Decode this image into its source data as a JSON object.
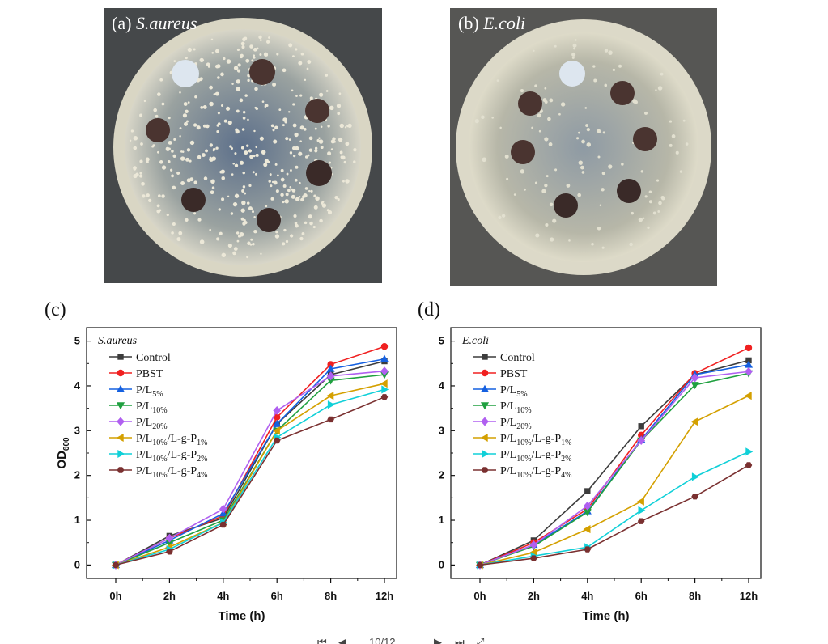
{
  "photos": [
    {
      "letter": "(a)",
      "organism": "S.aureus"
    },
    {
      "letter": "(b)",
      "organism": "E.coli"
    }
  ],
  "colors": {
    "Control": "#3c3c3c",
    "PBST": "#f02020",
    "P/L5%": "#1560e0",
    "P/L10%": "#20a040",
    "P/L20%": "#b060f0",
    "P/L10%/L-g-P1%": "#d4a000",
    "P/L10%/L-g-P2%": "#10d0d8",
    "P/L10%/L-g-P4%": "#7a3030"
  },
  "legend": [
    {
      "base": "Control",
      "sub": "",
      "mid": "",
      "sub2": "",
      "marker": "square"
    },
    {
      "base": "PBST",
      "sub": "",
      "mid": "",
      "sub2": "",
      "marker": "circle"
    },
    {
      "base": "P/L",
      "sub": "5%",
      "mid": "",
      "sub2": "",
      "marker": "triangle-up"
    },
    {
      "base": "P/L",
      "sub": "10%",
      "mid": "",
      "sub2": "",
      "marker": "triangle-down"
    },
    {
      "base": "P/L",
      "sub": "20%",
      "mid": "",
      "sub2": "",
      "marker": "diamond"
    },
    {
      "base": "P/L",
      "sub": "10%",
      "mid": "/L-g-P",
      "sub2": "1%",
      "marker": "triangle-left"
    },
    {
      "base": "P/L",
      "sub": "10%",
      "mid": "/L-g-P",
      "sub2": "2%",
      "marker": "triangle-right"
    },
    {
      "base": "P/L",
      "sub": "10%",
      "mid": "/L-g-P",
      "sub2": "4%",
      "marker": "hexagon"
    }
  ],
  "chart_data": [
    {
      "type": "line",
      "panel": "(c)",
      "annotation": "S.aureus",
      "xlabel": "Time (h)",
      "ylabel": "OD",
      "ylabel_sub": "600",
      "categories": [
        "0h",
        "2h",
        "4h",
        "6h",
        "8h",
        "12h"
      ],
      "ylim": [
        -0.3,
        5.3
      ],
      "yticks": [
        0,
        1,
        2,
        3,
        4,
        5
      ],
      "grid": false,
      "legend_position": "top-left",
      "series": [
        {
          "name": "Control",
          "values": [
            0,
            0.65,
            1.05,
            3.15,
            4.25,
            4.55
          ]
        },
        {
          "name": "PBST",
          "values": [
            0,
            0.6,
            1.1,
            3.3,
            4.48,
            4.88
          ]
        },
        {
          "name": "P/L5%",
          "values": [
            0,
            0.55,
            1.15,
            3.15,
            4.38,
            4.6
          ]
        },
        {
          "name": "P/L10%",
          "values": [
            0,
            0.5,
            1.0,
            3.0,
            4.12,
            4.25
          ]
        },
        {
          "name": "P/L20%",
          "values": [
            0,
            0.6,
            1.25,
            3.45,
            4.22,
            4.33
          ]
        },
        {
          "name": "P/L10%/L-g-P1%",
          "values": [
            0,
            0.4,
            0.95,
            3.0,
            3.78,
            4.05
          ]
        },
        {
          "name": "P/L10%/L-g-P2%",
          "values": [
            0,
            0.35,
            0.95,
            2.85,
            3.58,
            3.92
          ]
        },
        {
          "name": "P/L10%/L-g-P4%",
          "values": [
            0,
            0.3,
            0.9,
            2.78,
            3.25,
            3.75
          ]
        }
      ]
    },
    {
      "type": "line",
      "panel": "(d)",
      "annotation": "E.coli",
      "xlabel": "Time (h)",
      "ylabel": "",
      "ylabel_sub": "",
      "categories": [
        "0h",
        "2h",
        "4h",
        "6h",
        "8h",
        "12h"
      ],
      "ylim": [
        -0.3,
        5.3
      ],
      "yticks": [
        0,
        1,
        2,
        3,
        4,
        5
      ],
      "grid": false,
      "legend_position": "top-left",
      "series": [
        {
          "name": "Control",
          "values": [
            0,
            0.55,
            1.65,
            3.1,
            4.25,
            4.57
          ]
        },
        {
          "name": "PBST",
          "values": [
            0,
            0.5,
            1.25,
            2.9,
            4.28,
            4.85
          ]
        },
        {
          "name": "P/L5%",
          "values": [
            0,
            0.45,
            1.2,
            2.8,
            4.25,
            4.47
          ]
        },
        {
          "name": "P/L10%",
          "values": [
            0,
            0.42,
            1.18,
            2.78,
            4.02,
            4.28
          ]
        },
        {
          "name": "P/L20%",
          "values": [
            0,
            0.45,
            1.32,
            2.78,
            4.18,
            4.32
          ]
        },
        {
          "name": "P/L10%/L-g-P1%",
          "values": [
            0,
            0.28,
            0.8,
            1.42,
            3.2,
            3.78
          ]
        },
        {
          "name": "P/L10%/L-g-P2%",
          "values": [
            0,
            0.2,
            0.4,
            1.22,
            1.97,
            2.53
          ]
        },
        {
          "name": "P/L10%/L-g-P4%",
          "values": [
            0,
            0.15,
            0.35,
            0.98,
            1.53,
            2.23
          ]
        }
      ]
    }
  ],
  "pager": {
    "text": "10/12"
  }
}
